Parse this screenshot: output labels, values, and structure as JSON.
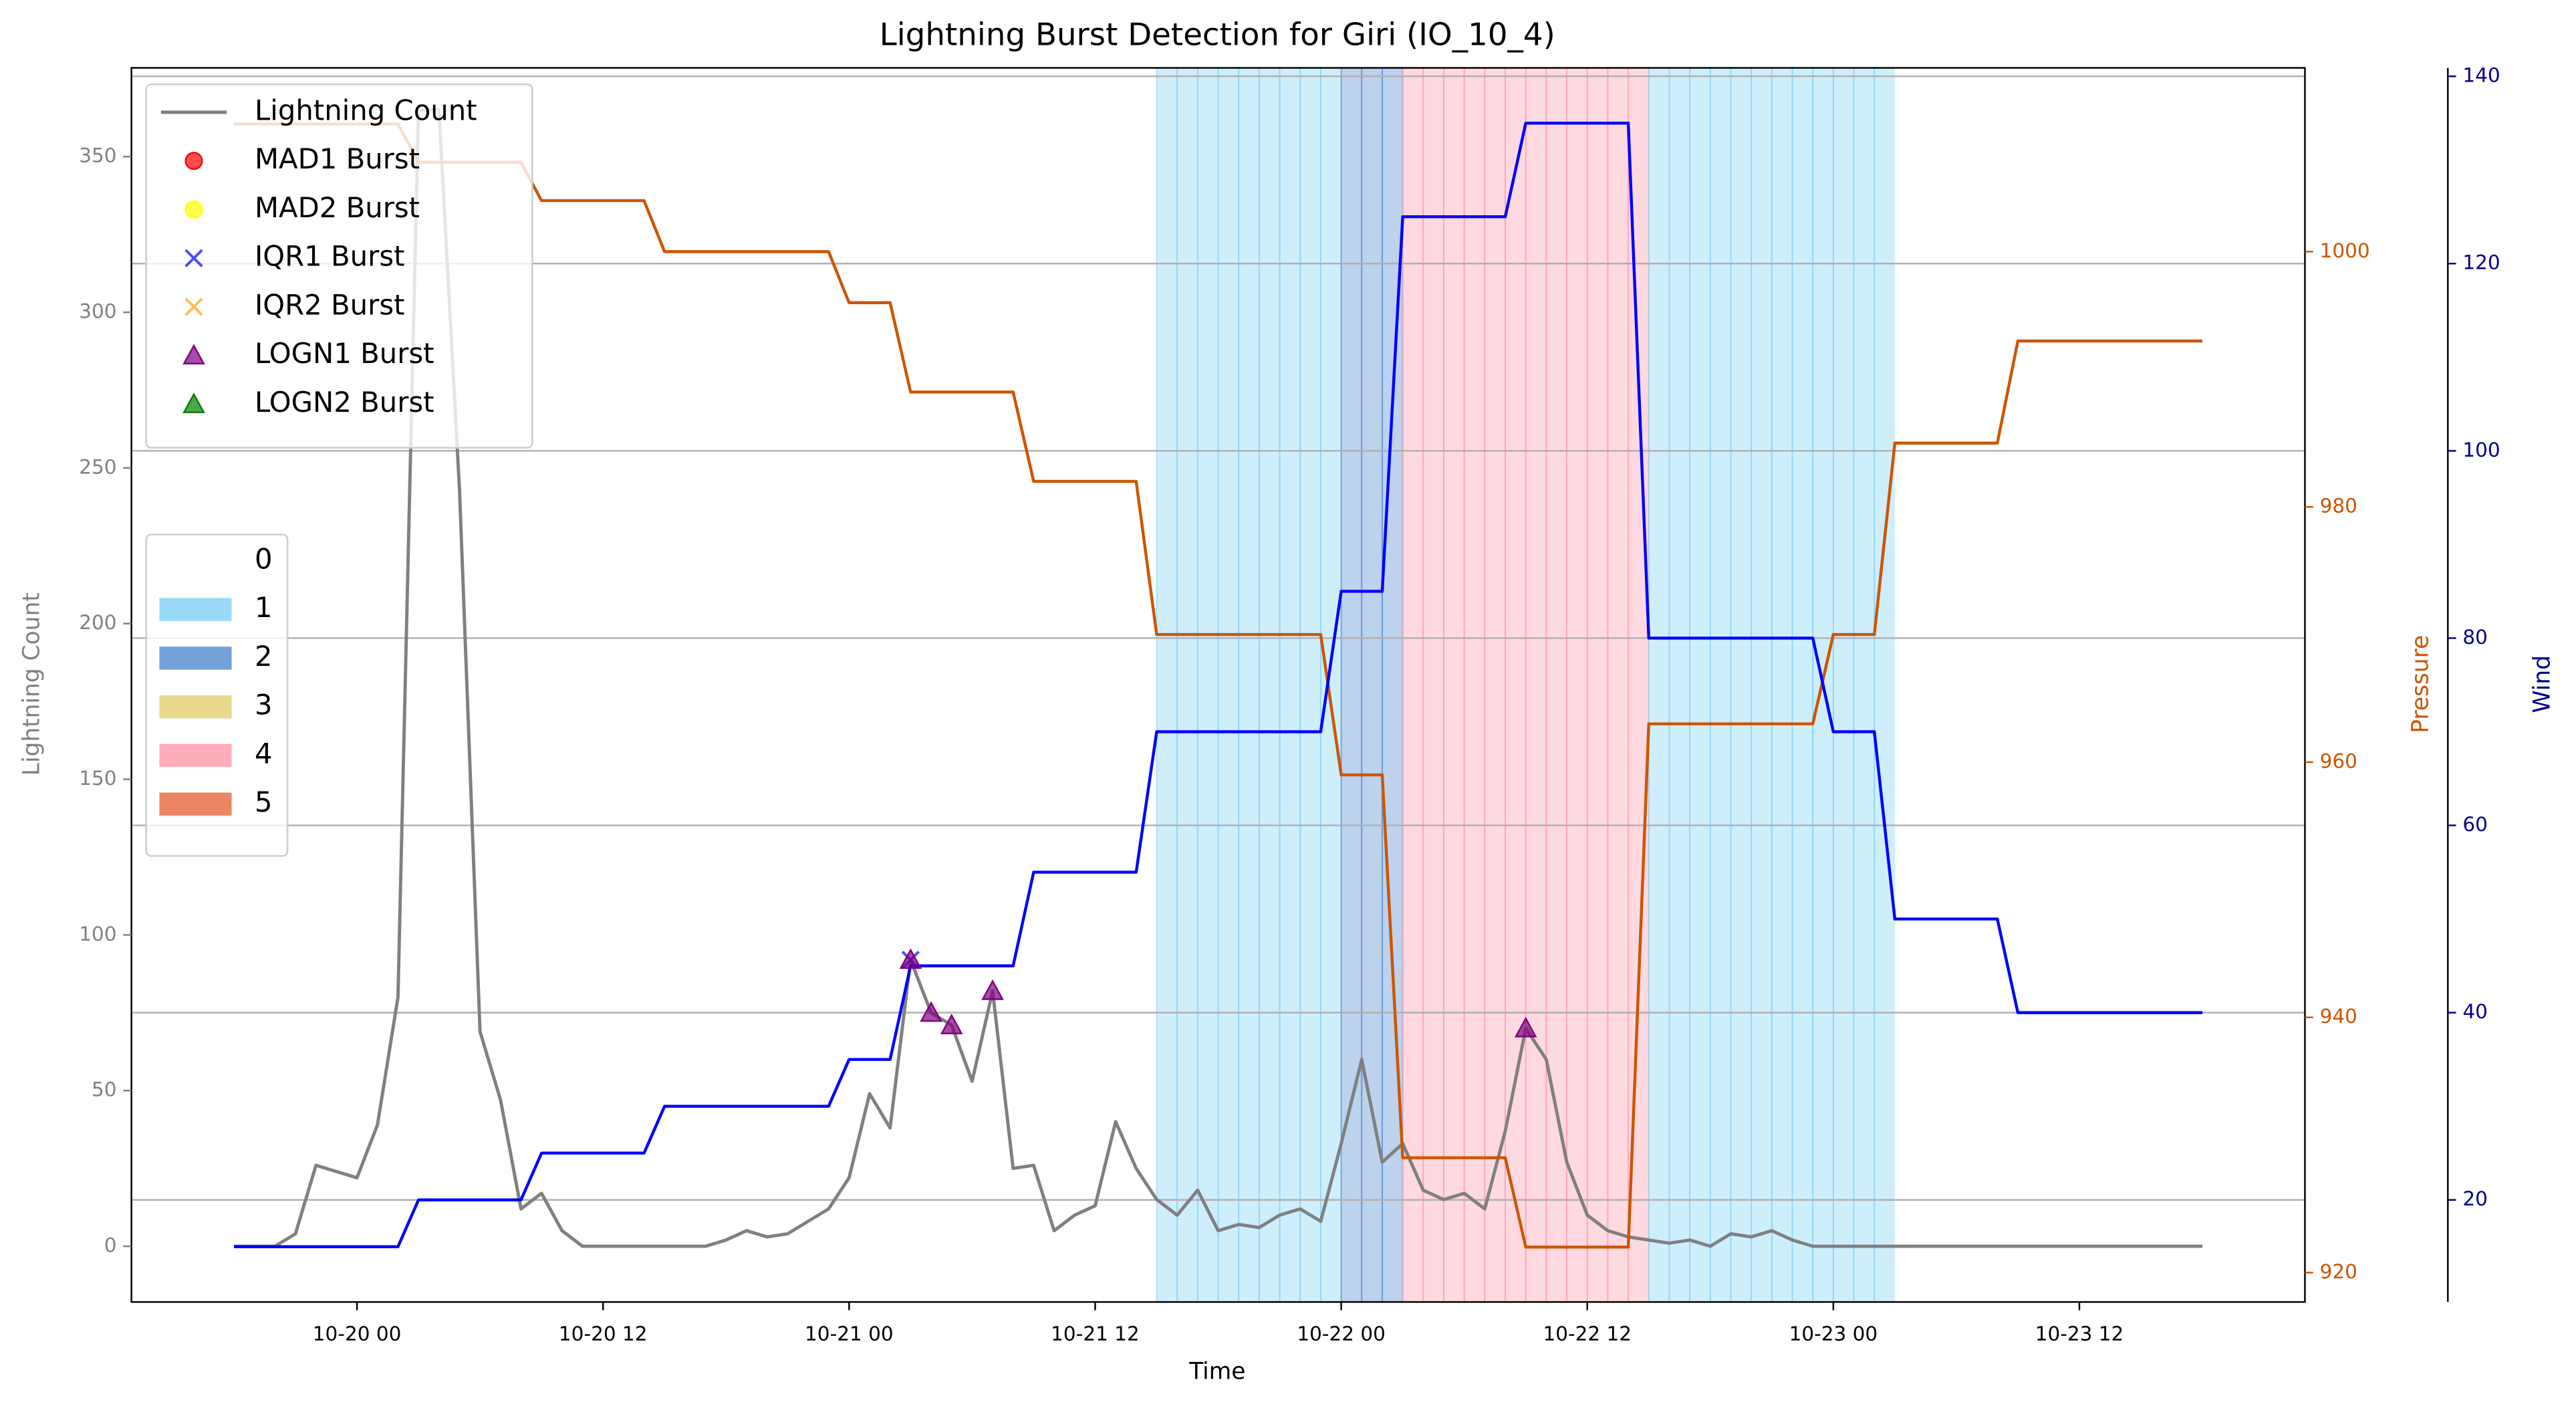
{
  "chart_data": {
    "type": "line",
    "title": "Lightning Burst Detection for Giri (IO_10_4)",
    "xlabel": "Time",
    "ylabel": "Lightning Count",
    "y2label": "Pressure",
    "y3label": "Wind",
    "x": [
      "10-19 18",
      "10-19 19",
      "10-19 20",
      "10-19 21",
      "10-19 22",
      "10-19 23",
      "10-20 00",
      "10-20 01",
      "10-20 02",
      "10-20 03",
      "10-20 04",
      "10-20 05",
      "10-20 06",
      "10-20 07",
      "10-20 08",
      "10-20 09",
      "10-20 10",
      "10-20 11",
      "10-20 12",
      "10-20 13",
      "10-20 14",
      "10-20 15",
      "10-20 16",
      "10-20 17",
      "10-20 18",
      "10-20 19",
      "10-20 20",
      "10-20 21",
      "10-20 22",
      "10-20 23",
      "10-21 00",
      "10-21 01",
      "10-21 02",
      "10-21 03",
      "10-21 04",
      "10-21 05",
      "10-21 06",
      "10-21 07",
      "10-21 08",
      "10-21 09",
      "10-21 10",
      "10-21 11",
      "10-21 12",
      "10-21 13",
      "10-21 14",
      "10-21 15",
      "10-21 16",
      "10-21 17",
      "10-21 18",
      "10-21 19",
      "10-21 20",
      "10-21 21",
      "10-21 22",
      "10-21 23",
      "10-22 00",
      "10-22 01",
      "10-22 02",
      "10-22 03",
      "10-22 04",
      "10-22 05",
      "10-22 06",
      "10-22 07",
      "10-22 08",
      "10-22 09",
      "10-22 10",
      "10-22 11",
      "10-22 12",
      "10-22 13",
      "10-22 14",
      "10-22 15",
      "10-22 16",
      "10-22 17",
      "10-22 18",
      "10-22 19",
      "10-22 20",
      "10-22 21",
      "10-22 22",
      "10-22 23",
      "10-23 00",
      "10-23 01",
      "10-23 02",
      "10-23 03",
      "10-23 04",
      "10-23 05",
      "10-23 06",
      "10-23 07",
      "10-23 08",
      "10-23 09",
      "10-23 10",
      "10-23 11",
      "10-23 12",
      "10-23 13",
      "10-23 14",
      "10-23 15",
      "10-23 16",
      "10-23 17",
      "10-23 18"
    ],
    "xlim": [
      "10-19 13",
      "10-23 23"
    ],
    "xticks": [
      "10-20 00",
      "10-20 12",
      "10-21 00",
      "10-21 12",
      "10-22 00",
      "10-22 12",
      "10-23 00",
      "10-23 12"
    ],
    "ylim": [
      -17.9,
      378.5
    ],
    "yticks": [
      0,
      50,
      100,
      150,
      200,
      250,
      300,
      350
    ],
    "y2lim": [
      917.7,
      1014.4
    ],
    "y2ticks": [
      920,
      940,
      960,
      980,
      1000
    ],
    "y3lim": [
      9.1,
      140.9
    ],
    "y3ticks": [
      20,
      40,
      60,
      80,
      100,
      120,
      140
    ],
    "grid_axis": "y3",
    "intensity": [
      0,
      0,
      0,
      0,
      0,
      0,
      0,
      0,
      0,
      0,
      0,
      0,
      0,
      0,
      0,
      0,
      0,
      0,
      0,
      0,
      0,
      0,
      0,
      0,
      0,
      0,
      0,
      0,
      0,
      0,
      0,
      0,
      0,
      0,
      0,
      0,
      0,
      0,
      0,
      0,
      0,
      0,
      0,
      0,
      0,
      1,
      1,
      1,
      1,
      1,
      1,
      1,
      1,
      1,
      2,
      2,
      2,
      4,
      4,
      4,
      4,
      4,
      4,
      4,
      4,
      4,
      4,
      4,
      4,
      1,
      1,
      1,
      1,
      1,
      1,
      1,
      1,
      1,
      1,
      1,
      1,
      0,
      0,
      0,
      0,
      0,
      0,
      0,
      0,
      0,
      0,
      0,
      0,
      0,
      0,
      0,
      0
    ],
    "intensity_legend": {
      "labels": [
        0,
        1,
        2,
        3,
        4,
        5
      ],
      "colors": [
        "#ffffff",
        "#87d4f8",
        "#5b8fd0",
        "#e8d27a",
        "#ff9fb2",
        "#e8714a"
      ]
    },
    "series": [
      {
        "name": "Lightning Count",
        "color": "#808080",
        "axis": "y",
        "values": [
          0,
          0,
          0,
          4,
          26,
          24,
          22,
          39,
          80,
          365,
          365,
          243,
          69,
          47,
          12,
          17,
          5,
          0,
          0,
          0,
          0,
          0,
          0,
          0,
          2,
          5,
          3,
          4,
          8,
          12,
          22,
          49,
          38,
          92,
          75,
          71,
          53,
          82,
          25,
          26,
          5,
          10,
          13,
          40,
          25,
          15,
          10,
          18,
          5,
          7,
          6,
          10,
          12,
          8,
          33,
          60,
          27,
          33,
          18,
          15,
          17,
          12,
          37,
          70,
          60,
          27,
          10,
          5,
          3,
          2,
          1,
          2,
          0,
          4,
          3,
          5,
          2,
          0,
          0,
          0,
          0,
          0,
          0,
          0,
          0,
          0,
          0,
          0,
          0,
          0,
          0,
          0,
          0,
          0,
          0,
          0,
          0
        ]
      },
      {
        "color": "#cc5500",
        "axis": "y2",
        "values": [
          1010,
          1010,
          1010,
          1010,
          1010,
          1010,
          1010,
          1010,
          1010,
          1007,
          1007,
          1007,
          1007,
          1007,
          1007,
          1004,
          1004,
          1004,
          1004,
          1004,
          1004,
          1000,
          1000,
          1000,
          1000,
          1000,
          1000,
          1000,
          1000,
          1000,
          996,
          996,
          996,
          989,
          989,
          989,
          989,
          989,
          989,
          982,
          982,
          982,
          982,
          982,
          982,
          970,
          970,
          970,
          970,
          970,
          970,
          970,
          970,
          970,
          959,
          959,
          959,
          929,
          929,
          929,
          929,
          929,
          929,
          922,
          922,
          922,
          922,
          922,
          922,
          963,
          963,
          963,
          963,
          963,
          963,
          963,
          963,
          963,
          970,
          970,
          970,
          985,
          985,
          985,
          985,
          985,
          985,
          993,
          993,
          993,
          993,
          993,
          993,
          993,
          993,
          993,
          993
        ]
      },
      {
        "color": "#0000ff",
        "axis": "y3",
        "values": [
          15,
          15,
          15,
          15,
          15,
          15,
          15,
          15,
          15,
          20,
          20,
          20,
          20,
          20,
          20,
          25,
          25,
          25,
          25,
          25,
          25,
          30,
          30,
          30,
          30,
          30,
          30,
          30,
          30,
          30,
          35,
          35,
          35,
          45,
          45,
          45,
          45,
          45,
          45,
          55,
          55,
          55,
          55,
          55,
          55,
          70,
          70,
          70,
          70,
          70,
          70,
          70,
          70,
          70,
          85,
          85,
          85,
          125,
          125,
          125,
          125,
          125,
          125,
          135,
          135,
          135,
          135,
          135,
          135,
          80,
          80,
          80,
          80,
          80,
          80,
          80,
          80,
          80,
          70,
          70,
          70,
          50,
          50,
          50,
          50,
          50,
          50,
          40,
          40,
          40,
          40,
          40,
          40,
          40,
          40,
          40,
          40
        ]
      },
      {
        "name": "MAD1 Burst",
        "type": "scatter",
        "marker": "o",
        "color": "#ff0000",
        "axis": "y",
        "x": [],
        "values": []
      },
      {
        "name": "MAD2 Burst",
        "type": "scatter",
        "marker": "o",
        "color": "#ffff00",
        "axis": "y",
        "x": [],
        "values": []
      },
      {
        "name": "IQR1 Burst",
        "type": "scatter",
        "marker": "x",
        "color": "#0000ff",
        "axis": "y",
        "x": [
          "10-21 03"
        ],
        "values": [
          92
        ]
      },
      {
        "name": "IQR2 Burst",
        "type": "scatter",
        "marker": "x",
        "color": "#ffa500",
        "axis": "y",
        "x": [],
        "values": []
      },
      {
        "name": "LOGN1 Burst",
        "type": "scatter",
        "marker": "^",
        "color": "#800080",
        "axis": "y",
        "x": [
          "10-21 03",
          "10-21 04",
          "10-21 05",
          "10-21 07",
          "10-22 09"
        ],
        "values": [
          92,
          75,
          71,
          82,
          70
        ]
      },
      {
        "name": "LOGN2 Burst",
        "type": "scatter",
        "marker": "^",
        "color": "#008000",
        "axis": "y",
        "x": [],
        "values": []
      }
    ]
  }
}
